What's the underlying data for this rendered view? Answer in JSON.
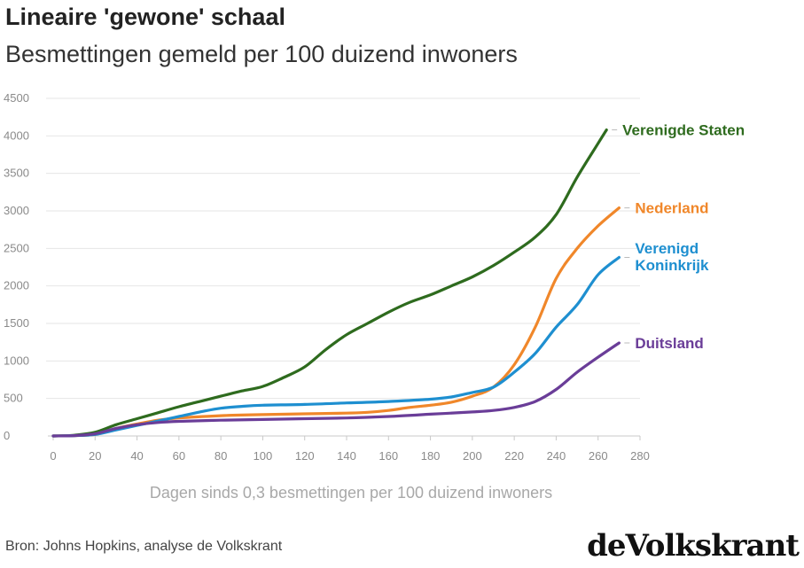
{
  "header": {
    "title": "Lineaire 'gewone' schaal",
    "subtitle": "Besmettingen gemeld per 100 duizend inwoners"
  },
  "footer": {
    "source": "Bron: Johns Hopkins, analyse de Volkskrant",
    "logo_text": "deVolkskrant"
  },
  "chart_data": {
    "type": "line",
    "title": "Lineaire 'gewone' schaal",
    "subtitle": "Besmettingen gemeld per 100 duizend inwoners",
    "xlabel": "Dagen sinds 0,3 besmettingen per 100 duizend inwoners",
    "ylabel": "",
    "xlim": [
      0,
      280
    ],
    "ylim": [
      0,
      4500
    ],
    "xticks": [
      0,
      20,
      40,
      60,
      80,
      100,
      120,
      140,
      160,
      180,
      200,
      220,
      240,
      260,
      280
    ],
    "yticks": [
      0,
      500,
      1000,
      1500,
      2000,
      2500,
      3000,
      3500,
      4000,
      4500
    ],
    "grid": true,
    "legend": "labels at line ends",
    "series": [
      {
        "name": "Verenigde Staten",
        "color": "#2e6b1e",
        "x": [
          0,
          10,
          20,
          30,
          40,
          50,
          60,
          70,
          80,
          90,
          100,
          110,
          120,
          130,
          140,
          150,
          160,
          170,
          180,
          190,
          200,
          210,
          220,
          230,
          240,
          250,
          260,
          264
        ],
        "y": [
          0,
          10,
          50,
          150,
          230,
          310,
          390,
          460,
          530,
          600,
          660,
          780,
          920,
          1150,
          1350,
          1500,
          1650,
          1780,
          1880,
          2000,
          2120,
          2270,
          2450,
          2650,
          2950,
          3450,
          3900,
          4080
        ]
      },
      {
        "name": "Nederland",
        "color": "#f0872a",
        "x": [
          0,
          10,
          20,
          30,
          40,
          50,
          60,
          80,
          100,
          120,
          140,
          150,
          160,
          170,
          180,
          190,
          200,
          210,
          220,
          230,
          240,
          250,
          260,
          270
        ],
        "y": [
          0,
          5,
          20,
          100,
          160,
          210,
          240,
          270,
          285,
          295,
          305,
          315,
          340,
          380,
          410,
          450,
          530,
          650,
          950,
          1450,
          2100,
          2500,
          2800,
          3040
        ]
      },
      {
        "name": "Verenigd Koninkrijk",
        "color": "#1e8fd0",
        "x": [
          0,
          10,
          20,
          30,
          40,
          50,
          60,
          70,
          80,
          90,
          100,
          120,
          140,
          160,
          180,
          190,
          200,
          210,
          220,
          230,
          240,
          250,
          260,
          270
        ],
        "y": [
          0,
          5,
          20,
          80,
          140,
          200,
          260,
          320,
          370,
          395,
          410,
          420,
          440,
          460,
          490,
          520,
          580,
          650,
          850,
          1100,
          1450,
          1750,
          2150,
          2380
        ]
      },
      {
        "name": "Duitsland",
        "color": "#6a3d98",
        "x": [
          0,
          10,
          20,
          30,
          40,
          50,
          60,
          80,
          100,
          120,
          140,
          160,
          180,
          200,
          210,
          220,
          230,
          240,
          250,
          260,
          270
        ],
        "y": [
          0,
          5,
          30,
          100,
          150,
          180,
          195,
          210,
          220,
          230,
          240,
          260,
          290,
          320,
          340,
          380,
          460,
          620,
          850,
          1050,
          1240
        ]
      }
    ],
    "labels": [
      {
        "lines": [
          "Verenigde Staten"
        ]
      },
      {
        "lines": [
          "Nederland"
        ]
      },
      {
        "lines": [
          "Verenigd",
          "Koninkrijk"
        ]
      },
      {
        "lines": [
          "Duitsland"
        ]
      }
    ]
  }
}
